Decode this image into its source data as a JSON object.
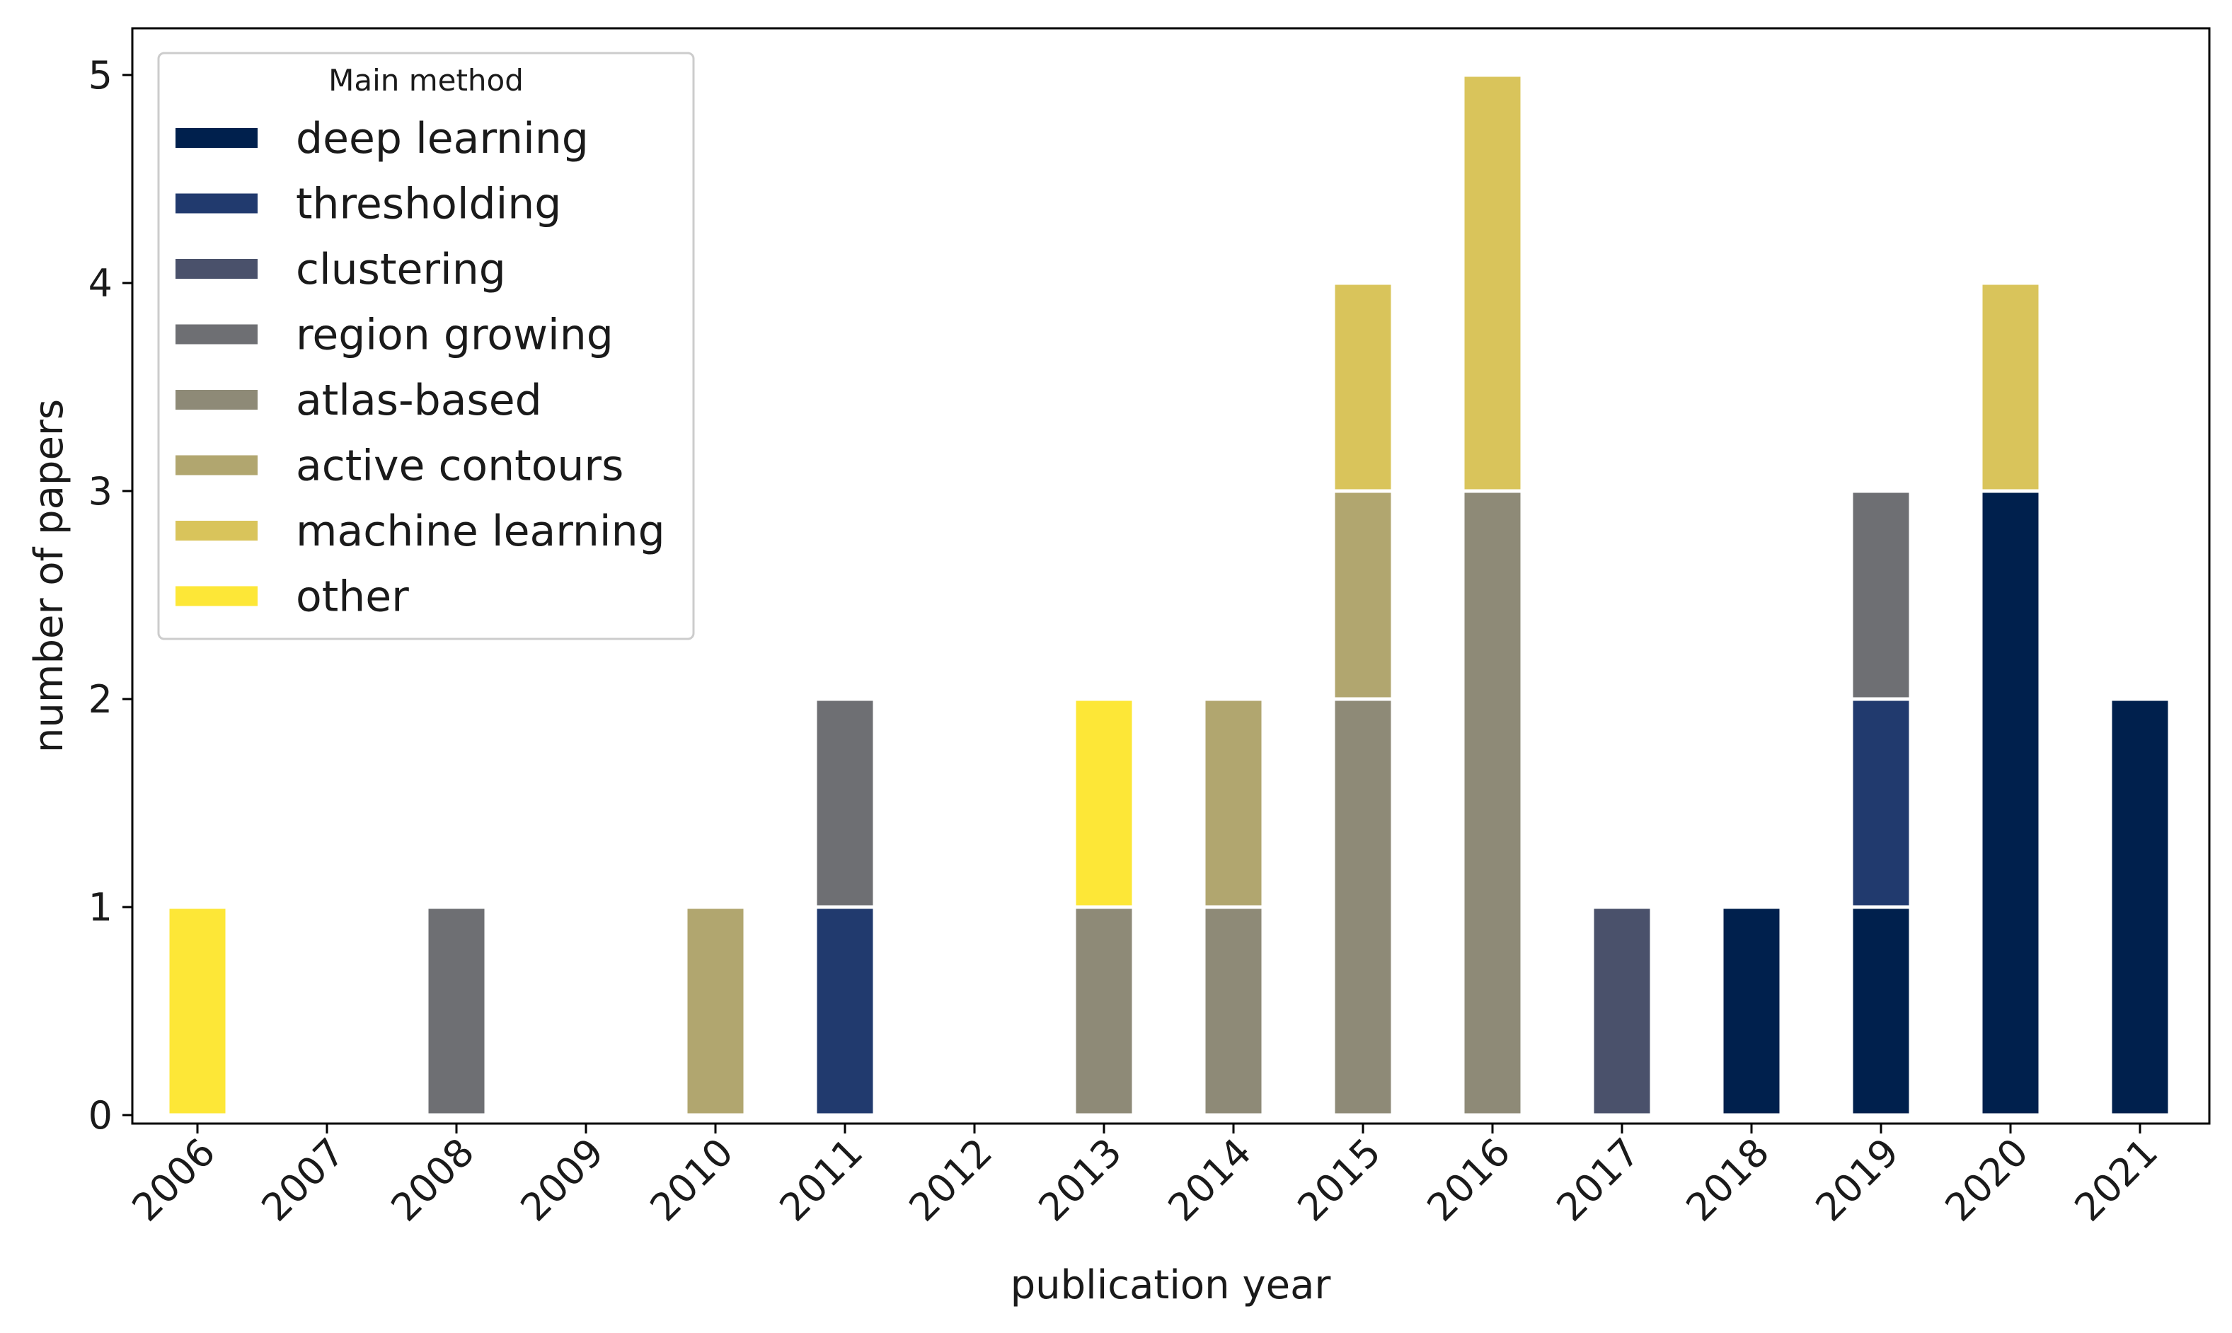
{
  "chart_data": {
    "type": "bar",
    "stacked": true,
    "title": "",
    "xlabel": "publication year",
    "ylabel": "number of papers",
    "ylim": [
      0,
      5.2
    ],
    "yticks": [
      0,
      1,
      2,
      3,
      4,
      5
    ],
    "categories": [
      "2006",
      "2007",
      "2008",
      "2009",
      "2010",
      "2011",
      "2012",
      "2013",
      "2014",
      "2015",
      "2016",
      "2017",
      "2018",
      "2019",
      "2020",
      "2021"
    ],
    "legend": {
      "title": "Main method",
      "location": "upper-left"
    },
    "series": [
      {
        "name": "deep learning",
        "color": "#00204d",
        "values": [
          0,
          0,
          0,
          0,
          0,
          0,
          0,
          0,
          0,
          0,
          0,
          0,
          1,
          1,
          3,
          2
        ]
      },
      {
        "name": "thresholding",
        "color": "#213a6e",
        "values": [
          0,
          0,
          0,
          0,
          0,
          1,
          0,
          0,
          0,
          0,
          0,
          0,
          0,
          1,
          0,
          0
        ]
      },
      {
        "name": "clustering",
        "color": "#4a516b",
        "values": [
          0,
          0,
          0,
          0,
          0,
          0,
          0,
          0,
          0,
          0,
          0,
          1,
          0,
          0,
          0,
          0
        ]
      },
      {
        "name": "region growing",
        "color": "#6e6f73",
        "values": [
          0,
          0,
          1,
          0,
          0,
          1,
          0,
          0,
          0,
          0,
          0,
          0,
          0,
          1,
          0,
          0
        ]
      },
      {
        "name": "atlas-based",
        "color": "#8e8a77",
        "values": [
          0,
          0,
          0,
          0,
          0,
          0,
          0,
          1,
          1,
          2,
          3,
          0,
          0,
          0,
          0,
          0
        ]
      },
      {
        "name": "active contours",
        "color": "#b1a66f",
        "values": [
          0,
          0,
          0,
          0,
          1,
          0,
          0,
          0,
          1,
          1,
          0,
          0,
          0,
          0,
          0,
          0
        ]
      },
      {
        "name": "machine learning",
        "color": "#d9c45b",
        "values": [
          0,
          0,
          0,
          0,
          0,
          0,
          0,
          0,
          0,
          1,
          2,
          0,
          0,
          0,
          1,
          0
        ]
      },
      {
        "name": "other",
        "color": "#fde737",
        "values": [
          1,
          0,
          0,
          0,
          0,
          0,
          0,
          1,
          0,
          0,
          0,
          0,
          0,
          0,
          0,
          0
        ]
      }
    ]
  }
}
